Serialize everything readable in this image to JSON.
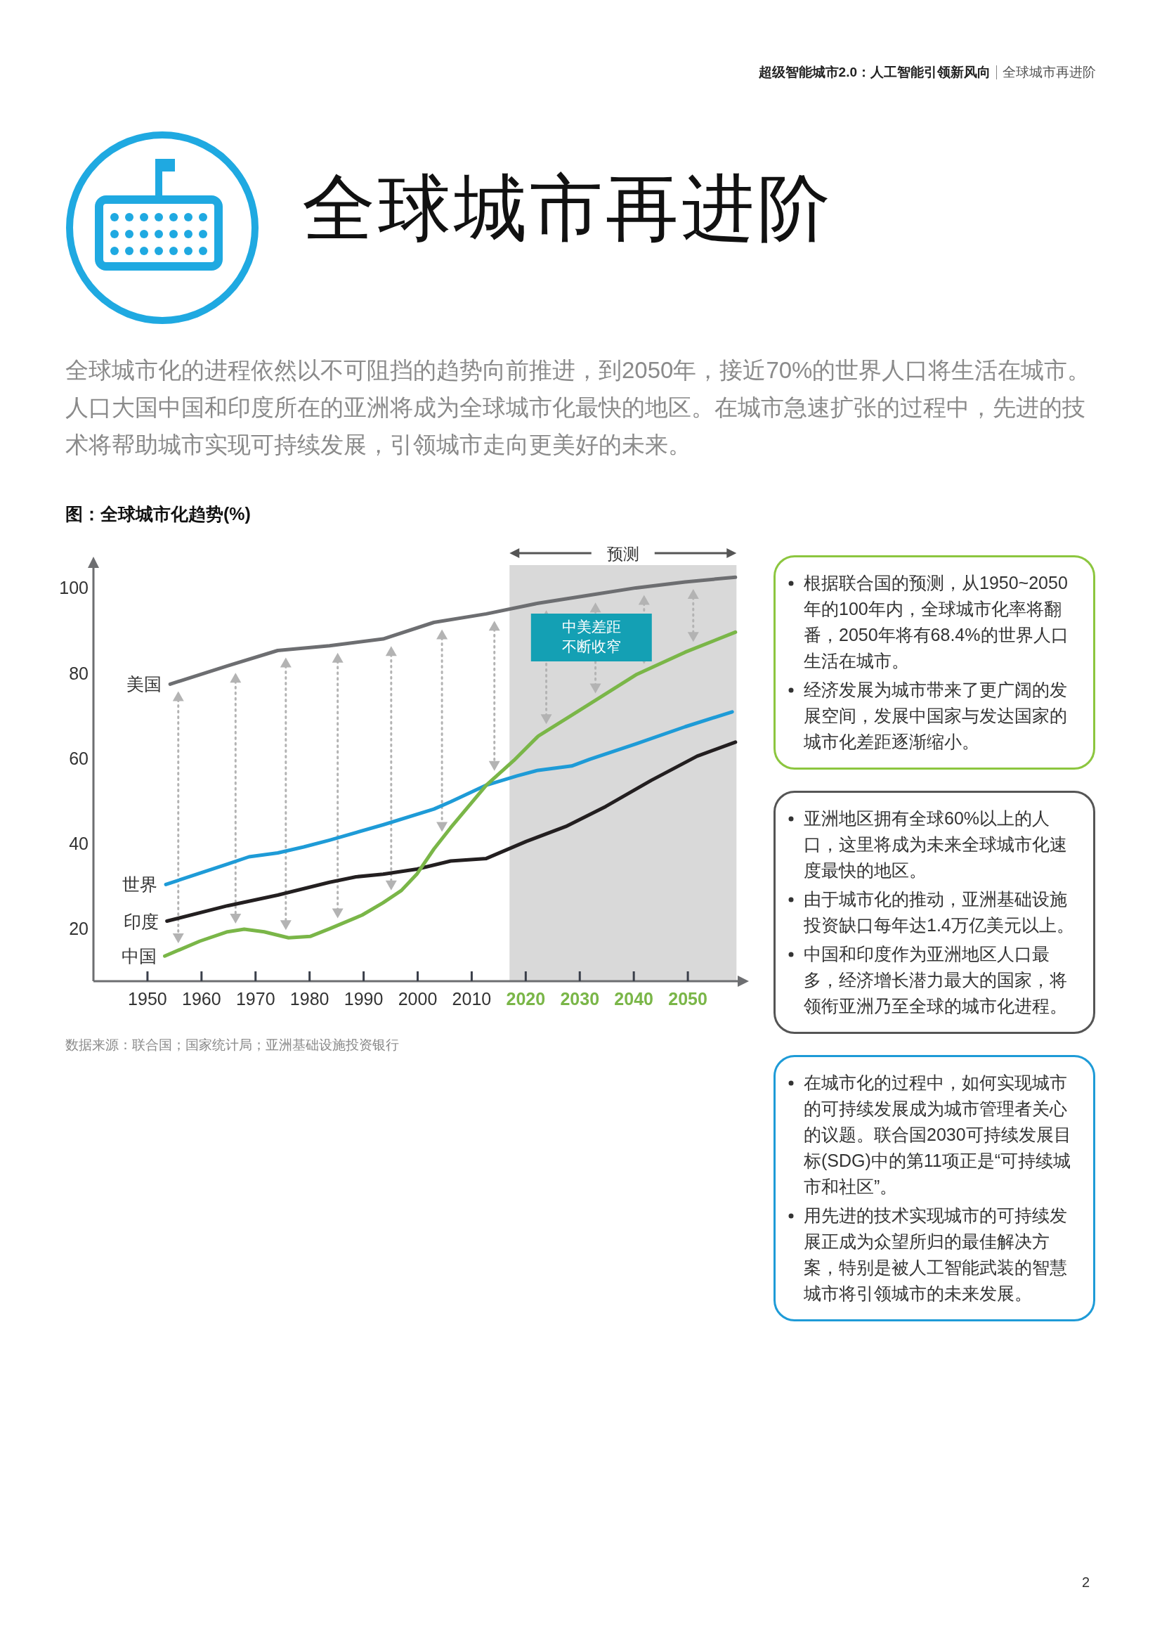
{
  "chart_data": [
    {
      "type": "other",
      "title": "全球城市再进阶",
      "subtitle": "全球城市化的进程依然以不可阻挡的趋势向前推进，到2050年，接近70%的世界人口将生活在城市。人口大国中国和印度所在的亚洲将成为全球城市化最快的地区。在城市急速扩张的过程中，先进的技术将帮助城市实现可持续发展，引领城市走向更美好的未来。",
      "annotations": [
        "超级智能城市2.0：人工智能引领新风向",
        "全球城市再进阶",
        "2"
      ]
    },
    {
      "type": "line",
      "title": "图：全球城市化趋势(%)",
      "line_style": "solid",
      "xlim": [
        1940,
        2060
      ],
      "ylim": [
        7.7,
        106
      ],
      "xticks": [
        1950,
        1960,
        1970,
        1980,
        1990,
        2000,
        2010,
        2020,
        2030,
        2040,
        2050
      ],
      "yticks": [
        20,
        40,
        60,
        80,
        100
      ],
      "bands": [
        {
          "axis": "x",
          "from": 2017,
          "to": 2059,
          "label": "预测",
          "color": "#d9d9d9"
        }
      ],
      "annotations": [
        "中美差距",
        "不断收窄",
        "数据来源：联合国；国家统计局；亚洲基础设施投资银行"
      ],
      "series": [
        {
          "name": "美国",
          "color": "#6d6e71",
          "x": [
            1954.2,
            1964.8,
            1974.1,
            1983.7,
            1993.6,
            2003.0,
            2012.7,
            2022.3,
            2031.4,
            2040.4,
            2049.5,
            2058.8
          ],
          "values": [
            77.4,
            81.7,
            85.3,
            86.4,
            88.0,
            91.9,
            93.9,
            96.4,
            98.2,
            100.0,
            101.4,
            102.5
          ]
        },
        {
          "name": "世界",
          "color": "#1e9bd7",
          "x": [
            1953.4,
            1964.8,
            1968.8,
            1974.1,
            1978.9,
            1983.7,
            1993.6,
            2003.0,
            2006.1,
            2012.7,
            2018.4,
            2022.3,
            2028.5,
            2031.9,
            2040.4,
            2049.5,
            2058.2
          ],
          "values": [
            30.4,
            35.2,
            36.9,
            37.8,
            39.2,
            40.8,
            44.4,
            48.1,
            49.8,
            53.7,
            55.9,
            57.2,
            58.2,
            59.8,
            63.4,
            67.4,
            70.9
          ]
        },
        {
          "name": "印度",
          "color": "#231f20",
          "x": [
            1953.6,
            1964.8,
            1974.1,
            1983.7,
            1988.6,
            1993.6,
            1999.9,
            2006.1,
            2012.7,
            2020.1,
            2027.4,
            2034.8,
            2043.2,
            2051.7,
            2058.8
          ],
          "values": [
            21.8,
            25.4,
            27.9,
            30.9,
            32.2,
            32.8,
            34.0,
            35.9,
            36.5,
            40.5,
            44.0,
            48.7,
            54.8,
            60.5,
            63.8
          ]
        },
        {
          "name": "中国",
          "color": "#7ab648",
          "x": [
            1953.2,
            1959.7,
            1964.8,
            1967.9,
            1971.6,
            1976.1,
            1980.1,
            1983.7,
            1989.7,
            1993.6,
            1997.0,
            1999.9,
            2003.0,
            2006.1,
            2012.7,
            2017.8,
            2022.3,
            2031.4,
            2040.4,
            2049.5,
            2058.8
          ],
          "values": [
            13.6,
            17.1,
            19.3,
            19.9,
            19.3,
            17.9,
            18.2,
            20.0,
            23.2,
            26.1,
            29.0,
            32.9,
            38.7,
            43.7,
            53.7,
            59.5,
            65.2,
            72.4,
            79.6,
            84.9,
            89.6
          ]
        }
      ]
    },
    {
      "type": "other",
      "annotations": [
        "根据联合国的预测，从1950~2050年的100年内，全球城市化率将翻番，2050年将有68.4%的世界人口生活在城市。",
        "经济发展为城市带来了更广阔的发展空间，发展中国家与发达国家的城市化差距逐渐缩小。"
      ]
    },
    {
      "type": "other",
      "annotations": [
        "亚洲地区拥有全球60%以上的人口，这里将成为未来全球城市化速度最快的地区。",
        "由于城市化的推动，亚洲基础设施投资缺口每年达1.4万亿美元以上。",
        "中国和印度作为亚洲地区人口最多，经济增长潜力最大的国家，将领衔亚洲乃至全球的城市化进程。"
      ]
    },
    {
      "type": "other",
      "annotations": [
        "在城市化的过程中，如何实现城市的可持续发展成为城市管理者关心的议题。联合国2030可持续发展目标(SDG)中的第11项正是“可持续城市和社区”。",
        "用先进的技术实现城市的可持续发展正成为众望所归的最佳解决方案，特别是被人工智能武装的智慧城市将引领城市的未来发展。"
      ]
    }
  ]
}
